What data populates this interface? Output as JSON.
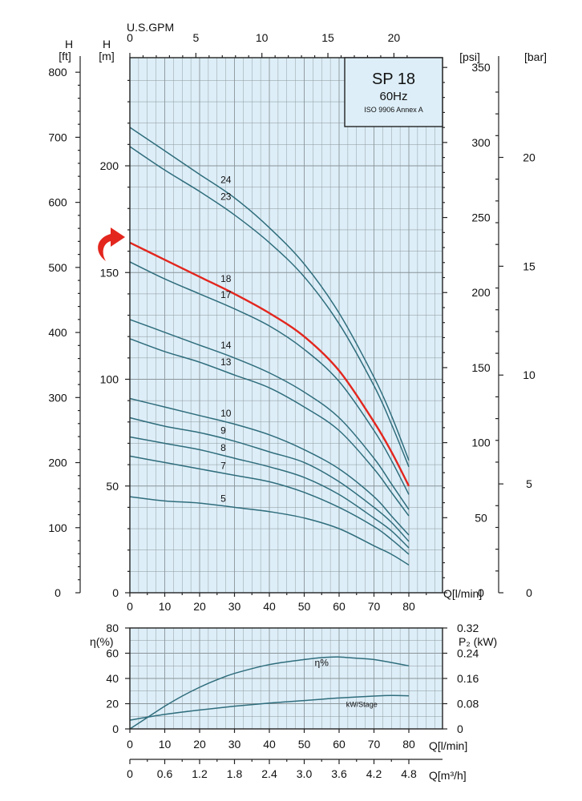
{
  "chart_data": [
    {
      "type": "line",
      "title": "SP 18",
      "subtitle": "60Hz",
      "standard": "ISO 9906 Annex A",
      "top_axis": {
        "label": "U.S.GPM",
        "range": [
          0,
          21.13
        ],
        "ticks": [
          "0",
          "5",
          "10",
          "15",
          "20"
        ]
      },
      "xlabel": "Q[l/min]",
      "xlim": [
        0,
        90
      ],
      "x_ticks": [
        "0",
        "10",
        "20",
        "30",
        "40",
        "50",
        "60",
        "70",
        "80"
      ],
      "ylabel": "H [m]",
      "ylim": [
        0,
        245
      ],
      "y_ticks": [
        "0",
        "50",
        "100",
        "150",
        "200"
      ],
      "left_ft_axis": {
        "label": "H [ft]",
        "ticks": [
          "0",
          "100",
          "200",
          "300",
          "400",
          "500",
          "600",
          "700",
          "800"
        ]
      },
      "right_psi_axis": {
        "label": "[psi]",
        "ticks": [
          "0",
          "50",
          "100",
          "150",
          "200",
          "250",
          "300",
          "350"
        ]
      },
      "right_bar_axis": {
        "label": "[bar]",
        "ticks": [
          "0",
          "5",
          "10",
          "15",
          "20"
        ]
      },
      "grid": true,
      "series": [
        {
          "name": "24",
          "x": [
            0,
            10,
            20,
            30,
            40,
            50,
            60,
            70,
            75,
            80
          ],
          "y": [
            218,
            207,
            196,
            185,
            171,
            154,
            131,
            101,
            83,
            62
          ]
        },
        {
          "name": "23",
          "x": [
            0,
            10,
            20,
            30,
            40,
            50,
            60,
            70,
            75,
            80
          ],
          "y": [
            209,
            198,
            188,
            177,
            164,
            148,
            126,
            97,
            79,
            59
          ]
        },
        {
          "name": "18",
          "x": [
            0,
            10,
            20,
            30,
            40,
            50,
            60,
            70,
            75,
            80
          ],
          "y": [
            164,
            156,
            148,
            140,
            131,
            120,
            104,
            80,
            66,
            50
          ]
        },
        {
          "name": "17",
          "x": [
            0,
            10,
            20,
            30,
            40,
            50,
            60,
            70,
            75,
            80
          ],
          "y": [
            155,
            147,
            140,
            133,
            125,
            114,
            99,
            76,
            62,
            46
          ]
        },
        {
          "name": "14",
          "x": [
            0,
            10,
            20,
            30,
            40,
            50,
            60,
            70,
            75,
            80
          ],
          "y": [
            128,
            122,
            116,
            110,
            103,
            94,
            82,
            63,
            51,
            39
          ]
        },
        {
          "name": "13",
          "x": [
            0,
            10,
            20,
            30,
            40,
            50,
            60,
            70,
            75,
            80
          ],
          "y": [
            119,
            113,
            108,
            102,
            96,
            87,
            76,
            58,
            47,
            36
          ]
        },
        {
          "name": "10",
          "x": [
            0,
            10,
            20,
            30,
            40,
            50,
            60,
            70,
            75,
            80
          ],
          "y": [
            91,
            87,
            83,
            79,
            74,
            67,
            58,
            45,
            36,
            27
          ]
        },
        {
          "name": "9",
          "x": [
            0,
            10,
            20,
            30,
            40,
            50,
            60,
            70,
            75,
            80
          ],
          "y": [
            82,
            78,
            75,
            71,
            66,
            61,
            52,
            40,
            33,
            24
          ]
        },
        {
          "name": "8",
          "x": [
            0,
            10,
            20,
            30,
            40,
            50,
            60,
            70,
            75,
            80
          ],
          "y": [
            73,
            70,
            67,
            63,
            59,
            54,
            46,
            35,
            29,
            21
          ]
        },
        {
          "name": "7",
          "x": [
            0,
            10,
            20,
            30,
            40,
            50,
            60,
            70,
            75,
            80
          ],
          "y": [
            64,
            61,
            58,
            55,
            52,
            47,
            40,
            31,
            25,
            18
          ]
        },
        {
          "name": "5",
          "x": [
            0,
            10,
            20,
            30,
            40,
            50,
            60,
            70,
            75,
            80
          ],
          "y": [
            45,
            43,
            42,
            40,
            38,
            35,
            30,
            22,
            18,
            13
          ]
        }
      ],
      "highlight": {
        "series": "18",
        "color": "#e3261e",
        "marker": "arrow pointing at the 18-stage curve start"
      },
      "curve_color": "#2f6d7c",
      "grid_color": "#8a9498",
      "background_color": "#ddeef8"
    },
    {
      "type": "line",
      "xlabel": "Q[l/min]",
      "xlim": [
        0,
        90
      ],
      "x_ticks": [
        "0",
        "10",
        "20",
        "30",
        "40",
        "50",
        "60",
        "70",
        "80"
      ],
      "second_x_axis": {
        "label": "Q[m³/h]",
        "ticks": [
          "0",
          "0.6",
          "1.2",
          "1.8",
          "2.4",
          "3.0",
          "3.6",
          "4.2",
          "4.8"
        ]
      },
      "ylabel": "η(%)",
      "ylim": [
        0,
        80
      ],
      "y_ticks": [
        "0",
        "20",
        "40",
        "60",
        "80"
      ],
      "right_axis": {
        "label": "P₂ (kW)",
        "range": [
          0,
          0.32
        ],
        "ticks": [
          "0",
          "0.08",
          "0.16",
          "0.24",
          "0.32"
        ]
      },
      "grid": true,
      "series": [
        {
          "name": "η%",
          "axis": "left",
          "x": [
            0,
            5,
            10,
            15,
            20,
            25,
            30,
            40,
            50,
            55,
            60,
            65,
            70,
            80
          ],
          "y": [
            0,
            9,
            18,
            26,
            33,
            39,
            44,
            51,
            55,
            56.5,
            57,
            56,
            55,
            50
          ]
        },
        {
          "name": "kW/Stage",
          "axis": "right",
          "x": [
            0,
            10,
            20,
            30,
            40,
            50,
            60,
            70,
            75,
            80
          ],
          "y": [
            0.028,
            0.046,
            0.06,
            0.072,
            0.082,
            0.09,
            0.098,
            0.104,
            0.106,
            0.105
          ]
        }
      ]
    }
  ]
}
